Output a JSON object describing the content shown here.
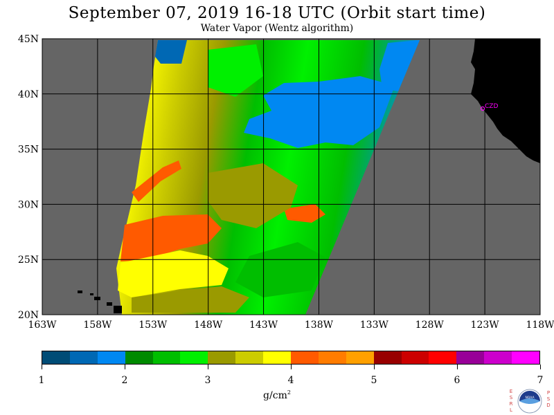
{
  "title": "September 07, 2019  16-18 UTC  (Orbit start time)",
  "subtitle": "Water Vapor (Wentz algorithm)",
  "map": {
    "lat_labels": [
      "45N",
      "40N",
      "35N",
      "30N",
      "25N",
      "20N"
    ],
    "lon_labels": [
      "163W",
      "158W",
      "153W",
      "148W",
      "143W",
      "138W",
      "133W",
      "128W",
      "123W",
      "118W"
    ],
    "station_label": "CZD",
    "colors": {
      "no_data": "#656565",
      "land": "#000000",
      "grid": "#000000",
      "station": "#ff00ff"
    }
  },
  "colorbar": {
    "colors": [
      "#004c76",
      "#0068b4",
      "#0088f2",
      "#008a00",
      "#00be00",
      "#00f000",
      "#9a9a00",
      "#cccc00",
      "#ffff00",
      "#ff5a00",
      "#ff7c00",
      "#ffa000",
      "#980000",
      "#cc0000",
      "#ff0000",
      "#980098",
      "#cc00cc",
      "#ff00ff"
    ],
    "tick_labels": [
      "1",
      "2",
      "3",
      "4",
      "5",
      "6",
      "7"
    ],
    "unit": "g/cm",
    "unit_sup": "2"
  },
  "logo": {
    "left_letters": [
      "E",
      "S",
      "R",
      "L"
    ],
    "right_letters": [
      "P",
      "S",
      "D"
    ],
    "center_text": "NOAA"
  }
}
